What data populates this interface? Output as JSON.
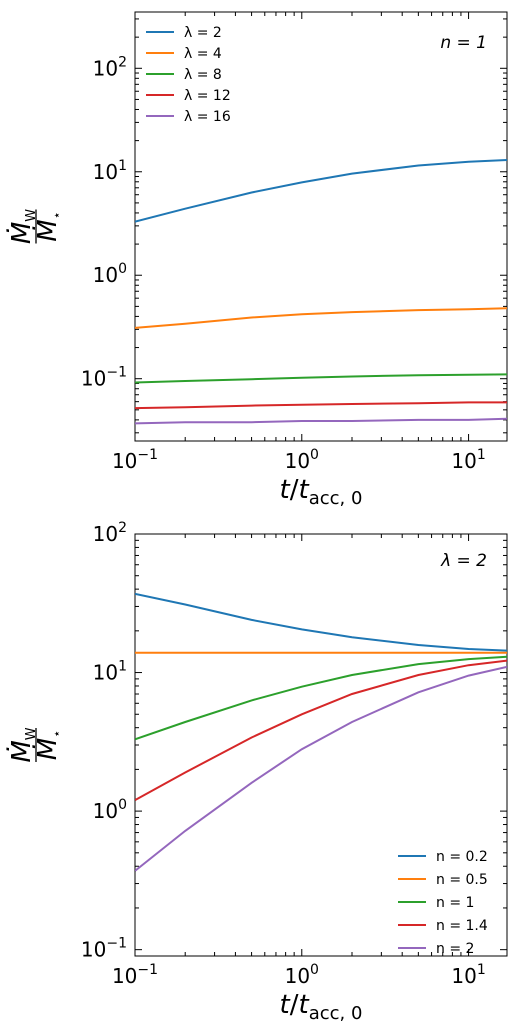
{
  "chart_data": [
    {
      "type": "line",
      "title": "",
      "annotation": "n = 1",
      "xlabel": "t/t_acc,0",
      "ylabel": "Ṁ_W / Ṁ_*",
      "xscale": "log",
      "yscale": "log",
      "xlim": [
        0.1,
        17
      ],
      "ylim": [
        0.025,
        350
      ],
      "x_ticks": [
        {
          "value": 0.1,
          "base": "10",
          "exp": "−1"
        },
        {
          "value": 1,
          "base": "10",
          "exp": "0"
        },
        {
          "value": 10,
          "base": "10",
          "exp": "1"
        }
      ],
      "y_ticks": [
        {
          "value": 0.1,
          "base": "10",
          "exp": "−1"
        },
        {
          "value": 1,
          "base": "10",
          "exp": "0"
        },
        {
          "value": 10,
          "base": "10",
          "exp": "1"
        },
        {
          "value": 100,
          "base": "10",
          "exp": "2"
        }
      ],
      "grid": false,
      "legend_position": "top-left",
      "series": [
        {
          "name": "λ = 2",
          "color": "#1f77b4",
          "x": [
            0.1,
            0.2,
            0.5,
            1,
            2,
            5,
            10,
            17
          ],
          "y": [
            3.3,
            4.4,
            6.3,
            7.9,
            9.6,
            11.5,
            12.5,
            13.0
          ]
        },
        {
          "name": "λ = 4",
          "color": "#ff7f0e",
          "x": [
            0.1,
            0.2,
            0.5,
            1,
            2,
            5,
            10,
            17
          ],
          "y": [
            0.31,
            0.34,
            0.39,
            0.42,
            0.44,
            0.46,
            0.47,
            0.48
          ]
        },
        {
          "name": "λ = 8",
          "color": "#2ca02c",
          "x": [
            0.1,
            0.2,
            0.5,
            1,
            2,
            5,
            10,
            17
          ],
          "y": [
            0.092,
            0.095,
            0.099,
            0.102,
            0.105,
            0.108,
            0.109,
            0.11
          ]
        },
        {
          "name": "λ = 12",
          "color": "#d62728",
          "x": [
            0.1,
            0.2,
            0.5,
            1,
            2,
            5,
            10,
            17
          ],
          "y": [
            0.052,
            0.053,
            0.055,
            0.056,
            0.057,
            0.058,
            0.059,
            0.059
          ]
        },
        {
          "name": "λ = 16",
          "color": "#9467bd",
          "x": [
            0.1,
            0.2,
            0.5,
            1,
            2,
            5,
            10,
            17
          ],
          "y": [
            0.037,
            0.038,
            0.038,
            0.039,
            0.039,
            0.04,
            0.04,
            0.041
          ]
        }
      ]
    },
    {
      "type": "line",
      "title": "",
      "annotation": "λ = 2",
      "xlabel": "t/t_acc,0",
      "ylabel": "Ṁ_W / Ṁ_*",
      "xscale": "log",
      "yscale": "log",
      "xlim": [
        0.1,
        17
      ],
      "ylim": [
        0.09,
        100
      ],
      "x_ticks": [
        {
          "value": 0.1,
          "base": "10",
          "exp": "−1"
        },
        {
          "value": 1,
          "base": "10",
          "exp": "0"
        },
        {
          "value": 10,
          "base": "10",
          "exp": "1"
        }
      ],
      "y_ticks": [
        {
          "value": 0.1,
          "base": "10",
          "exp": "−1"
        },
        {
          "value": 1,
          "base": "10",
          "exp": "0"
        },
        {
          "value": 10,
          "base": "10",
          "exp": "1"
        },
        {
          "value": 100,
          "base": "10",
          "exp": "2"
        }
      ],
      "grid": false,
      "legend_position": "bottom-right",
      "series": [
        {
          "name": "n = 0.2",
          "color": "#1f77b4",
          "x": [
            0.1,
            0.2,
            0.5,
            1,
            2,
            5,
            10,
            17
          ],
          "y": [
            37,
            31,
            24,
            20.5,
            18,
            15.8,
            14.8,
            14.4
          ]
        },
        {
          "name": "n = 0.5",
          "color": "#ff7f0e",
          "x": [
            0.1,
            0.2,
            0.5,
            1,
            2,
            5,
            10,
            17
          ],
          "y": [
            13.9,
            13.9,
            13.9,
            13.9,
            13.9,
            13.9,
            13.9,
            13.9
          ]
        },
        {
          "name": "n = 1",
          "color": "#2ca02c",
          "x": [
            0.1,
            0.2,
            0.5,
            1,
            2,
            5,
            10,
            17
          ],
          "y": [
            3.3,
            4.4,
            6.3,
            7.9,
            9.6,
            11.5,
            12.5,
            13.0
          ]
        },
        {
          "name": "n = 1.4",
          "color": "#d62728",
          "x": [
            0.1,
            0.2,
            0.5,
            1,
            2,
            5,
            10,
            17
          ],
          "y": [
            1.2,
            1.9,
            3.4,
            5.0,
            7.0,
            9.6,
            11.3,
            12.2
          ]
        },
        {
          "name": "n = 2",
          "color": "#9467bd",
          "x": [
            0.1,
            0.2,
            0.5,
            1,
            2,
            5,
            10,
            17
          ],
          "y": [
            0.37,
            0.72,
            1.6,
            2.8,
            4.4,
            7.2,
            9.5,
            11.0
          ]
        }
      ]
    }
  ]
}
